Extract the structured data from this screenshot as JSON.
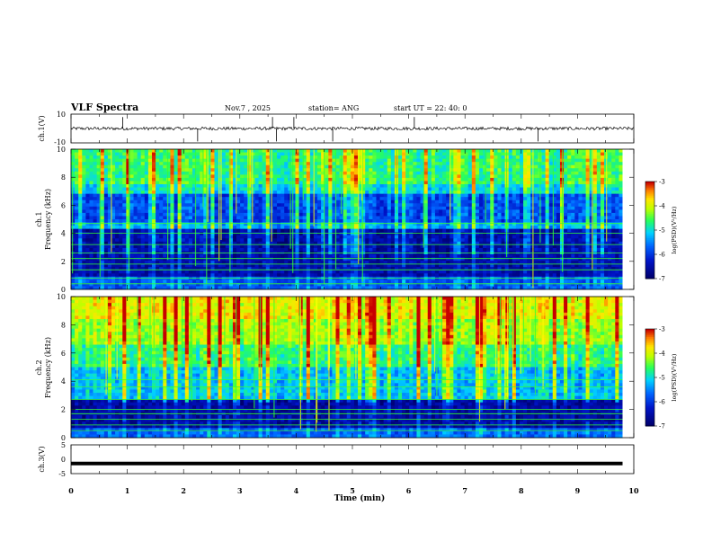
{
  "header": {
    "title": "VLF Spectra",
    "date": "Nov.7 , 2025",
    "station": "station= ANG",
    "start": "start UT = 22: 40: 0"
  },
  "chart_data": [
    {
      "type": "line",
      "name": "ch1-waveform",
      "ylabel": "ch.1(V)",
      "ylim": [
        -10,
        10
      ],
      "ytick_labels": [
        "10",
        "-10"
      ],
      "baseline_v": 0,
      "spike_times_min": [
        0.92,
        2.25,
        3.58,
        3.65,
        3.96,
        4.65,
        6.1,
        8.3
      ]
    },
    {
      "type": "heatmap",
      "name": "ch1-spectrogram",
      "ylabel_top": "ch.1",
      "ylabel": "Frequency (kHz)",
      "ylim": [
        0,
        10
      ],
      "ytick_labels": [
        "0",
        "2",
        "4",
        "6",
        "8",
        "10"
      ],
      "data_end_min": 9.8,
      "green_line_freqs_khz": [
        4.7,
        4.0,
        3.2,
        2.6,
        2.2,
        1.8,
        1.4,
        0.8,
        0.4
      ],
      "colorbar": {
        "label": "log(PSD)(V²/Hz)",
        "range": [
          -7,
          -3
        ],
        "tick_labels": [
          "-3",
          "-4",
          "-5",
          "-6",
          "-7"
        ]
      }
    },
    {
      "type": "heatmap",
      "name": "ch2-spectrogram",
      "ylabel_top": "ch.2",
      "ylabel": "Frequency (kHz)",
      "ylim": [
        0,
        10
      ],
      "ytick_labels": [
        "0",
        "2",
        "4",
        "6",
        "8",
        "10"
      ],
      "data_end_min": 9.8,
      "green_line_freqs_khz": [
        4.1,
        3.6,
        2.7,
        2.0,
        1.7,
        1.3,
        0.9,
        0.5
      ],
      "colorbar": {
        "label": "log(PSD)(V²/Hz)",
        "range": [
          -7,
          -3
        ],
        "tick_labels": [
          "-3",
          "-4",
          "-5",
          "-6",
          "-7"
        ]
      }
    },
    {
      "type": "line",
      "name": "ch3-waveform",
      "ylabel": "ch.3(V)",
      "ylim": [
        -5,
        5
      ],
      "ytick_labels": [
        "5",
        "0",
        "-5"
      ],
      "level_v": -1.5
    }
  ],
  "xaxis": {
    "label": "Time (min)",
    "range": [
      0,
      10
    ],
    "tick_labels": [
      "0",
      "1",
      "2",
      "3",
      "4",
      "5",
      "6",
      "7",
      "8",
      "9",
      "10"
    ]
  },
  "colors": {
    "dark_blue": "#00008c",
    "blue": "#0032ff",
    "cyan": "#00c8ff",
    "green": "#32ff32",
    "yellow": "#ffff00",
    "orange": "#ff8c00",
    "red": "#c80000"
  }
}
